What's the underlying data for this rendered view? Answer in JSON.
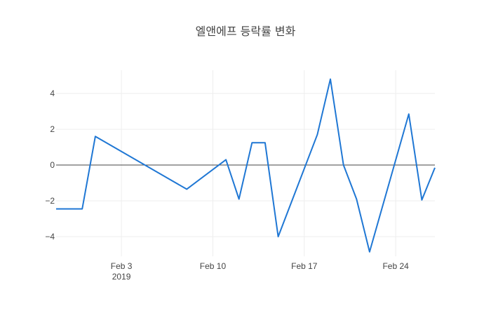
{
  "chart_data": {
    "type": "line",
    "title": "엘앤에프 등락률 변화",
    "xlabel": "",
    "ylabel": "",
    "xlim": [
      "2019-01-29",
      "2019-02-27"
    ],
    "ylim": [
      -5.1,
      5.3
    ],
    "x_ticks": [
      {
        "date": "2019-02-03",
        "label": "Feb 3",
        "sublabel": "2019"
      },
      {
        "date": "2019-02-10",
        "label": "Feb 10",
        "sublabel": ""
      },
      {
        "date": "2019-02-17",
        "label": "Feb 17",
        "sublabel": ""
      },
      {
        "date": "2019-02-24",
        "label": "Feb 24",
        "sublabel": ""
      }
    ],
    "y_ticks": [
      {
        "value": 4,
        "label": "4"
      },
      {
        "value": 2,
        "label": "2"
      },
      {
        "value": 0,
        "label": "0"
      },
      {
        "value": -2,
        "label": "−2"
      },
      {
        "value": -4,
        "label": "−4"
      }
    ],
    "grid": true,
    "series": [
      {
        "color": "#1f77d4",
        "points": [
          {
            "x": "2019-01-29",
            "y": -2.45
          },
          {
            "x": "2019-01-30",
            "y": -2.45
          },
          {
            "x": "2019-01-31",
            "y": -2.45
          },
          {
            "x": "2019-02-01",
            "y": 1.6
          },
          {
            "x": "2019-02-08",
            "y": -1.35
          },
          {
            "x": "2019-02-11",
            "y": 0.3
          },
          {
            "x": "2019-02-12",
            "y": -1.9
          },
          {
            "x": "2019-02-13",
            "y": 1.25
          },
          {
            "x": "2019-02-14",
            "y": 1.25
          },
          {
            "x": "2019-02-15",
            "y": -4.0
          },
          {
            "x": "2019-02-18",
            "y": 1.7
          },
          {
            "x": "2019-02-19",
            "y": 4.8
          },
          {
            "x": "2019-02-20",
            "y": 0.0
          },
          {
            "x": "2019-02-21",
            "y": -1.9
          },
          {
            "x": "2019-02-22",
            "y": -4.85
          },
          {
            "x": "2019-02-25",
            "y": 2.85
          },
          {
            "x": "2019-02-26",
            "y": -1.95
          },
          {
            "x": "2019-02-27",
            "y": -0.15
          }
        ]
      }
    ]
  }
}
